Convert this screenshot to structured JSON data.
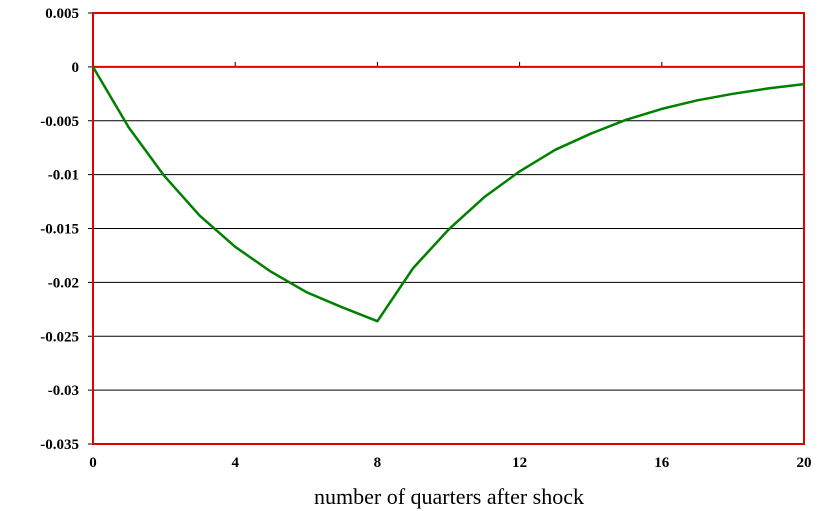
{
  "chart_data": {
    "type": "line",
    "title": "",
    "xlabel": "number of  quarters after shock",
    "ylabel": "",
    "xlim": [
      0,
      20
    ],
    "ylim": [
      -0.035,
      0.005
    ],
    "x_ticks": [
      "0",
      "4",
      "8",
      "12",
      "16",
      "20"
    ],
    "y_ticks": [
      "0.005",
      "0",
      "-0.005",
      "-0.01",
      "-0.015",
      "-0.02",
      "-0.025",
      "-0.03",
      "-0.035"
    ],
    "grid": true,
    "legend": "none",
    "colors": {
      "line": "#008000",
      "frame": "#e00000",
      "grid": "#000000"
    },
    "series": [
      {
        "x": [
          0,
          1,
          2,
          3,
          4,
          5,
          6,
          7,
          8,
          9,
          10,
          11,
          12,
          13,
          14,
          15,
          16,
          17,
          18,
          19,
          20
        ],
        "values": [
          0,
          -0.0056,
          -0.0101,
          -0.0138,
          -0.0167,
          -0.019,
          -0.0209,
          -0.0223,
          -0.0236,
          -0.0187,
          -0.0151,
          -0.0121,
          -0.0097,
          -0.0077,
          -0.0062,
          -0.0049,
          -0.0039,
          -0.0031,
          -0.0025,
          -0.002,
          -0.0016
        ]
      }
    ]
  }
}
